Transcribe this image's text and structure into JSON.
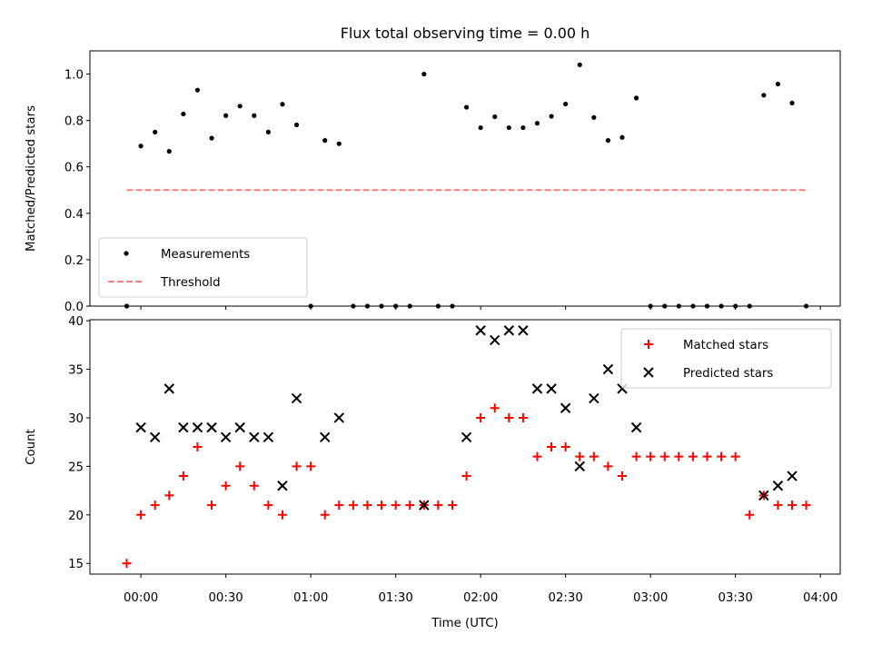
{
  "chart_data": {
    "title": "Flux total observing time = 0.00 h",
    "xlabel": "Time (UTC)",
    "x_unit": "minutes after 00:00 UTC",
    "xlim": [
      -18,
      247
    ],
    "xticks": [
      0,
      30,
      60,
      90,
      120,
      150,
      180,
      210,
      240
    ],
    "xtick_labels": [
      "00:00",
      "00:30",
      "01:00",
      "01:30",
      "02:00",
      "02:30",
      "03:00",
      "03:30",
      "04:00"
    ],
    "panels": [
      {
        "type": "scatter",
        "ylabel": "Matched/Predicted stars",
        "ylim": [
          0,
          1.1
        ],
        "yticks": [
          0.0,
          0.2,
          0.4,
          0.6,
          0.8,
          1.0
        ],
        "ytick_labels": [
          "0.0",
          "0.2",
          "0.4",
          "0.6",
          "0.8",
          "1.0"
        ],
        "legend_position": "lower left",
        "series": [
          {
            "name": "Measurements",
            "kind": "scatter",
            "color": "#000000",
            "marker": "dot",
            "x": [
              -5,
              0,
              5,
              10,
              15,
              20,
              25,
              30,
              35,
              40,
              45,
              50,
              55,
              60,
              65,
              70,
              75,
              80,
              85,
              90,
              95,
              100,
              105,
              110,
              115,
              120,
              125,
              130,
              135,
              140,
              145,
              150,
              155,
              160,
              165,
              170,
              175,
              180,
              185,
              190,
              195,
              200,
              205,
              210,
              215,
              220,
              225,
              230,
              235
            ],
            "y": [
              0.0,
              0.69,
              0.75,
              0.667,
              0.828,
              0.931,
              0.724,
              0.821,
              0.862,
              0.821,
              0.75,
              0.87,
              0.781,
              0.0,
              0.714,
              0.7,
              0.0,
              0.0,
              0.0,
              0.0,
              0.0,
              1.0,
              0.0,
              0.0,
              0.857,
              0.769,
              0.816,
              0.769,
              0.769,
              0.788,
              0.818,
              0.871,
              1.04,
              0.813,
              0.714,
              0.727,
              0.897,
              0.0,
              0.0,
              0.0,
              0.0,
              0.0,
              0.0,
              0.0,
              0.0,
              0.909,
              0.957,
              0.875,
              0.0
            ]
          },
          {
            "name": "Threshold",
            "kind": "line",
            "color": "#ff7f7f",
            "style": "dashed",
            "x": [
              -5,
              235
            ],
            "y": [
              0.5,
              0.5
            ]
          }
        ]
      },
      {
        "type": "scatter",
        "ylabel": "Count",
        "ylim": [
          13.9,
          40.1
        ],
        "yticks": [
          15,
          20,
          25,
          30,
          35,
          40
        ],
        "ytick_labels": [
          "15",
          "20",
          "25",
          "30",
          "35",
          "40"
        ],
        "legend_position": "upper right",
        "series": [
          {
            "name": "Matched stars",
            "kind": "scatter",
            "color": "#ff0000",
            "marker": "plus",
            "x": [
              -5,
              0,
              5,
              10,
              15,
              20,
              25,
              30,
              35,
              40,
              45,
              50,
              55,
              60,
              65,
              70,
              75,
              80,
              85,
              90,
              95,
              100,
              105,
              110,
              115,
              120,
              125,
              130,
              135,
              140,
              145,
              150,
              155,
              160,
              165,
              170,
              175,
              180,
              185,
              190,
              195,
              200,
              205,
              210,
              215,
              220,
              225,
              230,
              235
            ],
            "y": [
              15,
              20,
              21,
              22,
              24,
              27,
              21,
              23,
              25,
              23,
              21,
              20,
              25,
              25,
              20,
              21,
              21,
              21,
              21,
              21,
              21,
              21,
              21,
              21,
              24,
              30,
              31,
              30,
              30,
              26,
              27,
              27,
              26,
              26,
              25,
              24,
              26,
              26,
              26,
              26,
              26,
              26,
              26,
              26,
              20,
              22,
              21,
              21,
              21
            ]
          },
          {
            "name": "Predicted stars",
            "kind": "scatter",
            "color": "#000000",
            "marker": "x",
            "x": [
              0,
              5,
              10,
              15,
              20,
              25,
              30,
              35,
              40,
              45,
              50,
              55,
              65,
              70,
              100,
              115,
              120,
              125,
              130,
              135,
              140,
              145,
              150,
              155,
              160,
              165,
              170,
              175,
              220,
              225,
              230
            ],
            "y": [
              29,
              28,
              33,
              29,
              29,
              29,
              28,
              29,
              28,
              28,
              23,
              32,
              28,
              30,
              21,
              28,
              39,
              38,
              39,
              39,
              33,
              33,
              31,
              25,
              32,
              35,
              33,
              29,
              22,
              23,
              24
            ]
          }
        ]
      }
    ]
  }
}
